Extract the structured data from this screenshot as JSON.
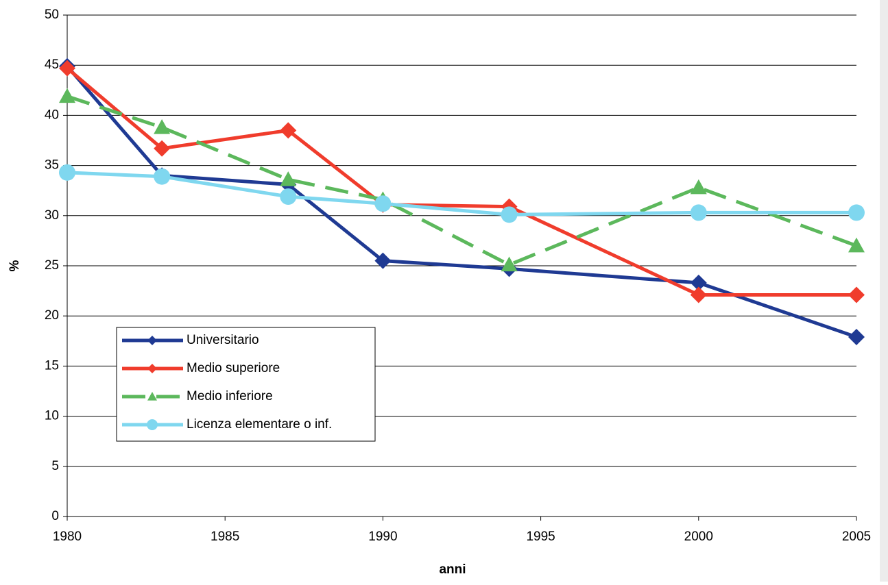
{
  "chart_data": {
    "type": "line",
    "x": [
      1980,
      1983,
      1987,
      1990,
      1994,
      2000,
      2005
    ],
    "xlabel": "anni",
    "ylabel": "%",
    "xlim": [
      1980,
      2005
    ],
    "xticks": [
      1980,
      1985,
      1990,
      1995,
      2000,
      2005
    ],
    "ylim": [
      0,
      50
    ],
    "yticks": [
      0,
      5,
      10,
      15,
      20,
      25,
      30,
      35,
      40,
      45,
      50
    ],
    "grid": true,
    "legend": "lower left",
    "series": [
      {
        "name": "Universitario",
        "color": "#1f3a93",
        "marker": "diamond",
        "dashed": false,
        "values": [
          44.9,
          34.0,
          33.1,
          25.5,
          24.7,
          23.3,
          17.9
        ]
      },
      {
        "name": "Medio superiore",
        "color": "#f03c2c",
        "marker": "diamond",
        "dashed": false,
        "values": [
          44.7,
          36.7,
          38.5,
          31.1,
          30.9,
          22.1,
          22.1
        ]
      },
      {
        "name": "Medio inferiore",
        "color": "#5cb85c",
        "marker": "triangle",
        "dashed": true,
        "values": [
          41.9,
          38.8,
          33.6,
          31.6,
          25.1,
          32.8,
          27.0
        ]
      },
      {
        "name": "Licenza elementare o inf.",
        "color": "#7fd7ef",
        "marker": "circle",
        "dashed": false,
        "values": [
          34.3,
          33.9,
          31.9,
          31.2,
          30.1,
          30.3,
          30.3
        ]
      }
    ]
  }
}
